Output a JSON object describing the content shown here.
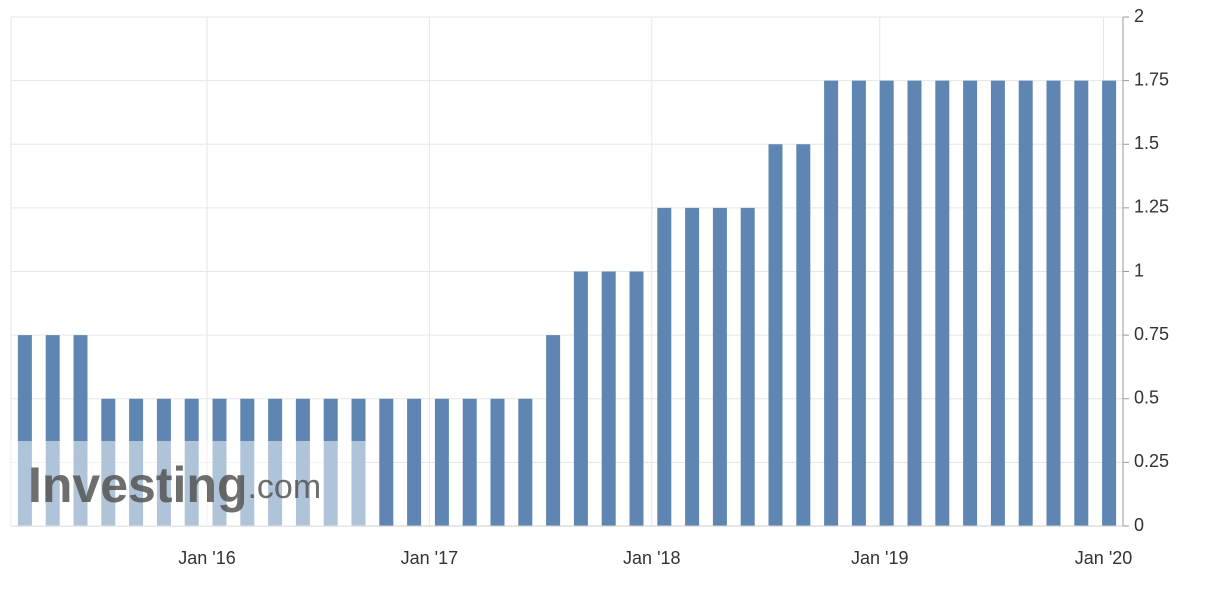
{
  "chart_data": {
    "type": "bar",
    "watermark": {
      "brand": "Investing",
      "suffix": ".com"
    },
    "categories": [
      null,
      null,
      null,
      null,
      null,
      null,
      null,
      null,
      null,
      null,
      null,
      null,
      null,
      null,
      null,
      null,
      null,
      null,
      null,
      null,
      null,
      null,
      null,
      null,
      null,
      null,
      null,
      null,
      null,
      null,
      null,
      null,
      null,
      null,
      null,
      null,
      null,
      null,
      null,
      null
    ],
    "values": [
      0.75,
      0.75,
      0.75,
      0.5,
      0.5,
      0.5,
      0.5,
      0.5,
      0.5,
      0.5,
      0.5,
      0.5,
      0.5,
      0.5,
      0.5,
      0.5,
      0.5,
      0.5,
      0.5,
      0.75,
      1,
      1,
      1,
      1.25,
      1.25,
      1.25,
      1.25,
      1.5,
      1.5,
      1.75,
      1.75,
      1.75,
      1.75,
      1.75,
      1.75,
      1.75,
      1.75,
      1.75,
      1.75,
      1.75
    ],
    "color": "#5f86b2",
    "ylim": [
      0,
      2
    ],
    "yticks": [
      0,
      0.25,
      0.5,
      0.75,
      1,
      1.25,
      1.5,
      1.75,
      2
    ],
    "xticks": [
      {
        "value": 6.55,
        "label": "Jan '16"
      },
      {
        "value": 14.55,
        "label": "Jan '17"
      },
      {
        "value": 22.55,
        "label": "Jan '18"
      },
      {
        "value": 30.75,
        "label": "Jan '19"
      },
      {
        "value": 38.8,
        "label": "Jan '20"
      }
    ],
    "grid": true
  }
}
